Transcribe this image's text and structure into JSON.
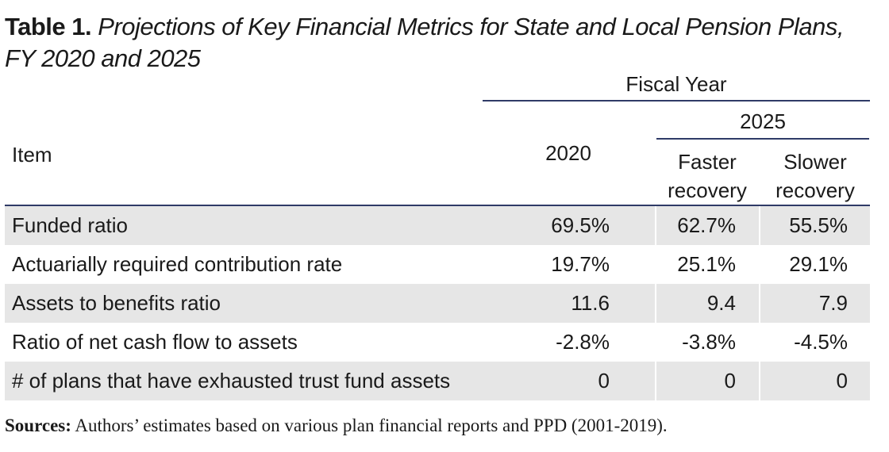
{
  "title": {
    "label": "Table 1.",
    "text": " Projections of Key Financial Metrics for State and Local Pension Plans, FY 2020 and 2025"
  },
  "header": {
    "fiscal_year": "Fiscal Year",
    "item": "Item",
    "year_2020": "2020",
    "year_2025": "2025",
    "faster_recovery_line1": "Faster",
    "faster_recovery_line2": "recovery",
    "slower_recovery_line1": "Slower",
    "slower_recovery_line2": "recovery"
  },
  "rows": [
    {
      "item": "Funded ratio",
      "y2020": "69.5%",
      "faster": "62.7%",
      "slower": "55.5%"
    },
    {
      "item": "Actuarially required contribution rate",
      "y2020": "19.7%",
      "faster": "25.1%",
      "slower": "29.1%"
    },
    {
      "item": "Assets to benefits ratio",
      "y2020": "11.6",
      "faster": "9.4",
      "slower": "7.9"
    },
    {
      "item": "Ratio of net cash flow to assets",
      "y2020": "-2.8%",
      "faster": "-3.8%",
      "slower": "-4.5%"
    },
    {
      "item": "# of plans that have exhausted trust fund assets",
      "y2020": "0",
      "faster": "0",
      "slower": "0"
    }
  ],
  "source": {
    "label": "Sources:",
    "text": " Authors’ estimates based on various plan financial reports and PPD (2001-2019)."
  },
  "colors": {
    "rule": "#2f3b67",
    "row_shade": "#e6e6e6"
  }
}
